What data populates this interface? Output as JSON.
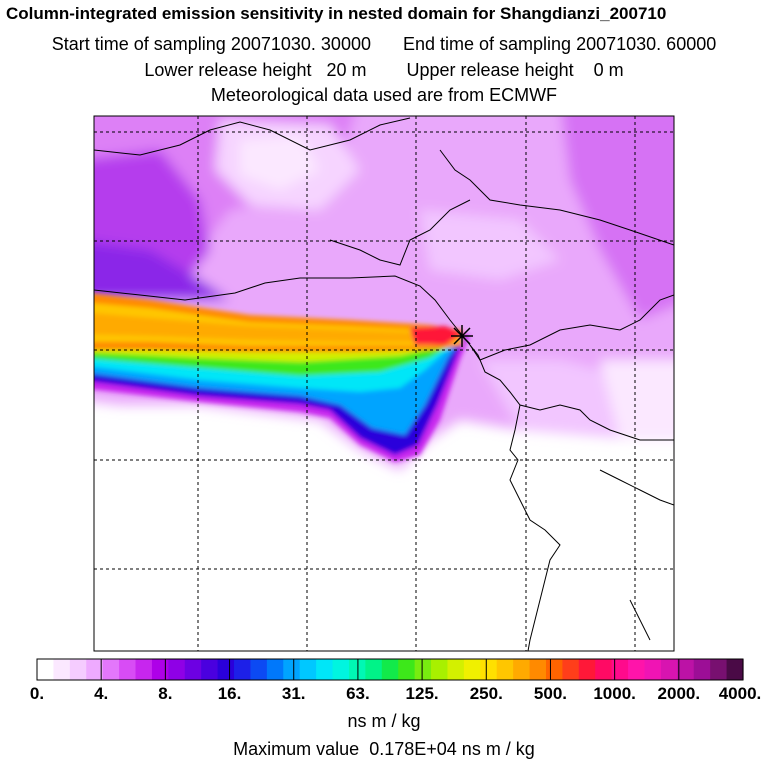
{
  "title": {
    "main": "Column-integrated emission sensitivity in nested domain for Shangdianzi_200710",
    "start_label": "Start time of sampling",
    "start_value": "20071030. 30000",
    "end_label": "End time of sampling",
    "end_value": "20071030. 60000",
    "lower_label": "Lower release height",
    "lower_value": "20 m",
    "upper_label": "Upper release height",
    "upper_value": "0 m",
    "met_line": "Meteorological data used are from ECMWF"
  },
  "map": {
    "release_marker": "release-site-star",
    "colors": {
      "background": "#ffffff",
      "coast": "#000000",
      "grid": "#000000"
    }
  },
  "colorbar": {
    "tick_labels": [
      "0.",
      "4.",
      "8.",
      "16.",
      "31.",
      "63.",
      "125.",
      "250.",
      "500.",
      "1000.",
      "2000.",
      "4000."
    ],
    "colors": [
      "#ffffff",
      "#fbe8ff",
      "#f5ccff",
      "#eeaaff",
      "#e377fb",
      "#d84cf5",
      "#c726ee",
      "#ae00e8",
      "#8f00e6",
      "#6d00e3",
      "#4a00df",
      "#2a00db",
      "#1d20e8",
      "#0c4af3",
      "#0078fb",
      "#00a4ff",
      "#00c8ff",
      "#00e6f8",
      "#00f5e0",
      "#00f8b4",
      "#00f388",
      "#12ea4a",
      "#3de81a",
      "#78ec10",
      "#a8f000",
      "#d3f000",
      "#f0f000",
      "#ffe000",
      "#ffc600",
      "#ffaa00",
      "#ff8a00",
      "#ff6400",
      "#ff3e1a",
      "#ff1838",
      "#ff0a64",
      "#ff0a8c",
      "#ff14aa",
      "#f014b4",
      "#d814b0",
      "#bc12a6",
      "#9c0e96",
      "#781070",
      "#4a0a46"
    ]
  },
  "units": "ns m / kg",
  "max_value_label": "Maximum value",
  "max_value": "0.178E+04 ns m / kg"
}
